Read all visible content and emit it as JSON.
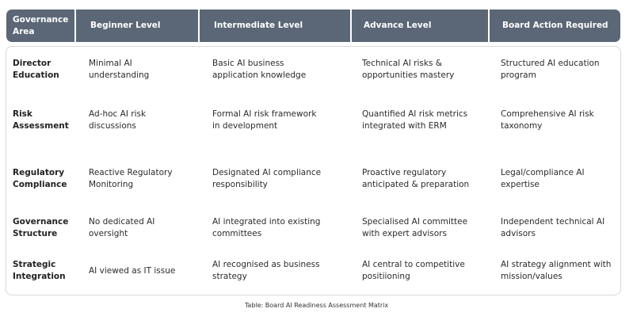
{
  "table": {
    "header": [
      "Governance Area",
      "Beginner Level",
      "Intermediate Level",
      "Advance Level",
      "Board Action Required"
    ],
    "rows": [
      [
        "Director Education",
        "Minimal AI understanding",
        "Basic AI business application knowledge",
        "Technical AI risks & opportunities mastery",
        "Structured AI education program"
      ],
      [
        "Risk Assessment",
        "Ad-hoc AI risk discussions",
        "Formal AI risk framework in development",
        "Quantified AI risk metrics integrated with ERM",
        "Comprehensive AI risk taxonomy"
      ],
      [
        "Regulatory Compliance",
        "Reactive Regulatory Monitoring",
        "Designated AI compliance responsibility",
        "Proactive regulatory anticipated & preparation",
        "Legal/compliance AI expertise"
      ],
      [
        "Governance Structure",
        "No dedicated AI oversight",
        "AI integrated into existing committees",
        "Specialised AI committee with expert advisors",
        "Independent technical AI advisors"
      ],
      [
        "Strategic Integration",
        "AI viewed as IT issue",
        "AI recognised as business strategy",
        "AI central to competitive positiioning",
        "AI strategy alignment with mission/values"
      ]
    ],
    "caption": "Table: Board AI Readiness Assessment Matrix"
  }
}
